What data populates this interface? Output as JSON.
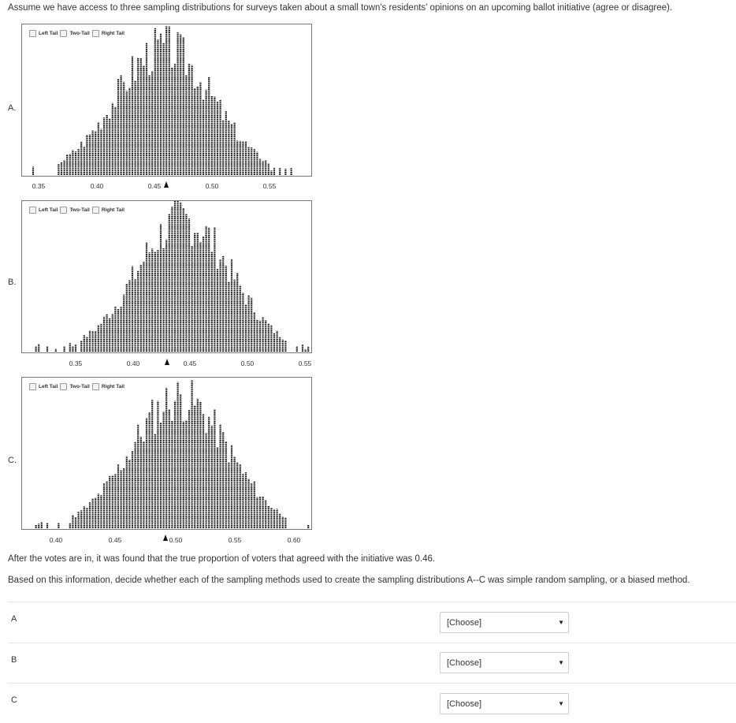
{
  "intro": "Assume we have access to three sampling distributions for surveys taken about a small town's residents' opinions on an upcoming ballot initiative (agree or disagree).",
  "tail_options": [
    "Left Tail",
    "Two-Tail",
    "Right Tail"
  ],
  "plots": [
    {
      "letter": "A.",
      "ticks": [
        "0.35",
        "0.40",
        "0.45",
        "0.50",
        "0.55"
      ],
      "marker_value": 0.46,
      "chart_data": {
        "type": "dotplot",
        "x_range": [
          0.33,
          0.58
        ],
        "peak_near": 0.46
      }
    },
    {
      "letter": "B.",
      "ticks": [
        "0.35",
        "0.40",
        "0.45",
        "0.50",
        "0.55"
      ],
      "marker_value": 0.46,
      "chart_data": {
        "type": "dotplot",
        "x_range": [
          0.32,
          0.555
        ],
        "peak_near": 0.43
      }
    },
    {
      "letter": "C.",
      "ticks": [
        "0.40",
        "0.45",
        "0.50",
        "0.55",
        "0.60"
      ],
      "marker_value": 0.46,
      "chart_data": {
        "type": "dotplot",
        "x_range": [
          0.38,
          0.61
        ],
        "peak_near": 0.5
      }
    }
  ],
  "after_text": "After the votes are in, it was found that the true proportion of voters that agreed with the initiative was 0.46.",
  "instruction": "Based on this information, decide whether each of the sampling methods used to create the sampling distributions A--C was simple random sampling, or a biased method.",
  "questions": [
    {
      "label": "A",
      "select_value": "[Choose]"
    },
    {
      "label": "B",
      "select_value": "[Choose]"
    },
    {
      "label": "C",
      "select_value": "[Choose]"
    }
  ]
}
